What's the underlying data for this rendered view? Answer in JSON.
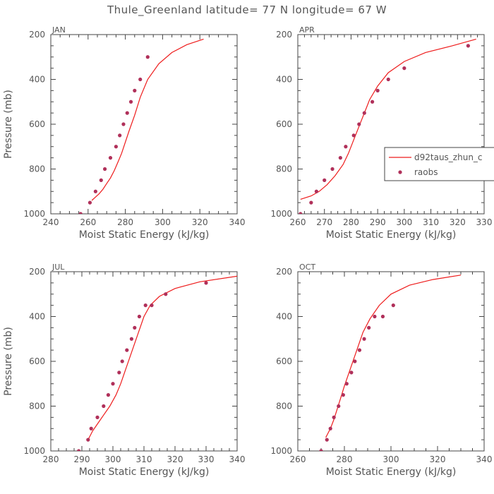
{
  "page": {
    "title": "Thule_Greenland  latitude= 77 N longitude= 67 W",
    "xlabel": "Moist Static Energy (kJ/kg)",
    "ylabel": "Pressure (mb)"
  },
  "legend": {
    "model_label": "d92taus_zhun_c",
    "obs_label": "raobs",
    "model_color": "#ee1c1c",
    "obs_color": "#b0305a"
  },
  "chart_data": [
    {
      "type": "line",
      "title": "JAN",
      "xlim": [
        240,
        340
      ],
      "xticks": [
        240,
        260,
        280,
        300,
        320,
        340
      ],
      "ylim": [
        1000,
        200
      ],
      "yticks": [
        200,
        400,
        600,
        800,
        1000
      ],
      "model": {
        "x": [
          262,
          264,
          266,
          268,
          270,
          272,
          274,
          276,
          278,
          280,
          282,
          285,
          288,
          292,
          298,
          305,
          313,
          322
        ],
        "y": [
          940,
          925,
          910,
          890,
          865,
          840,
          808,
          770,
          730,
          680,
          630,
          560,
          480,
          400,
          330,
          280,
          245,
          220
        ]
      },
      "raobs": {
        "x": [
          256,
          261,
          264,
          267,
          269,
          272,
          275,
          277,
          279,
          281,
          283,
          285,
          288,
          292
        ],
        "y": [
          1000,
          950,
          900,
          850,
          800,
          750,
          700,
          650,
          600,
          550,
          500,
          450,
          400,
          300
        ]
      }
    },
    {
      "type": "line",
      "title": "APR",
      "xlim": [
        260,
        330
      ],
      "xticks": [
        260,
        270,
        280,
        290,
        300,
        310,
        320,
        330
      ],
      "ylim": [
        1000,
        200
      ],
      "yticks": [
        200,
        400,
        600,
        800,
        1000
      ],
      "model": {
        "x": [
          261,
          265,
          268,
          271,
          274,
          277,
          279,
          281,
          283,
          285,
          287,
          290,
          294,
          300,
          308,
          318,
          327
        ],
        "y": [
          935,
          920,
          900,
          870,
          830,
          780,
          730,
          670,
          610,
          550,
          490,
          430,
          370,
          320,
          280,
          250,
          220
        ]
      },
      "raobs": {
        "x": [
          261,
          265,
          267,
          270,
          273,
          276,
          278,
          281,
          283,
          285,
          288,
          290,
          294,
          300,
          324
        ],
        "y": [
          1000,
          950,
          900,
          850,
          800,
          750,
          700,
          650,
          600,
          550,
          500,
          450,
          400,
          350,
          250
        ]
      }
    },
    {
      "type": "line",
      "title": "JUL",
      "xlim": [
        280,
        340
      ],
      "xticks": [
        280,
        290,
        300,
        310,
        320,
        330,
        340
      ],
      "ylim": [
        1000,
        200
      ],
      "yticks": [
        200,
        400,
        600,
        800,
        1000
      ],
      "model": {
        "x": [
          292,
          293.5,
          295,
          297,
          299,
          301,
          302.5,
          304,
          306,
          308,
          310,
          312,
          315,
          320,
          328,
          340
        ],
        "y": [
          950,
          910,
          880,
          840,
          800,
          750,
          700,
          640,
          560,
          480,
          400,
          350,
          310,
          275,
          245,
          220
        ]
      },
      "raobs": {
        "x": [
          289,
          292,
          293,
          295,
          297,
          298.5,
          300,
          302,
          303,
          304.5,
          306,
          307,
          308.5,
          310.5,
          312.5,
          317,
          330
        ],
        "y": [
          1000,
          950,
          900,
          850,
          800,
          750,
          700,
          650,
          600,
          550,
          500,
          450,
          400,
          350,
          350,
          300,
          250
        ]
      }
    },
    {
      "type": "line",
      "title": "OCT",
      "xlim": [
        260,
        340
      ],
      "xticks": [
        260,
        280,
        300,
        320,
        340
      ],
      "ylim": [
        1000,
        200
      ],
      "yticks": [
        200,
        400,
        600,
        800,
        1000
      ],
      "model": {
        "x": [
          272,
          274,
          275.5,
          277,
          278.5,
          280,
          282,
          284,
          286,
          288,
          291,
          295,
          300,
          308,
          318,
          330
        ],
        "y": [
          940,
          900,
          860,
          810,
          760,
          710,
          650,
          590,
          530,
          470,
          410,
          350,
          300,
          260,
          235,
          215
        ]
      },
      "raobs": {
        "x": [
          270,
          272.5,
          274,
          275.5,
          277.5,
          279.5,
          281,
          283,
          284.5,
          286.5,
          288.5,
          290.5,
          293,
          296.5,
          301
        ],
        "y": [
          1000,
          950,
          900,
          850,
          800,
          750,
          700,
          650,
          600,
          550,
          500,
          450,
          400,
          400,
          350
        ]
      }
    }
  ]
}
